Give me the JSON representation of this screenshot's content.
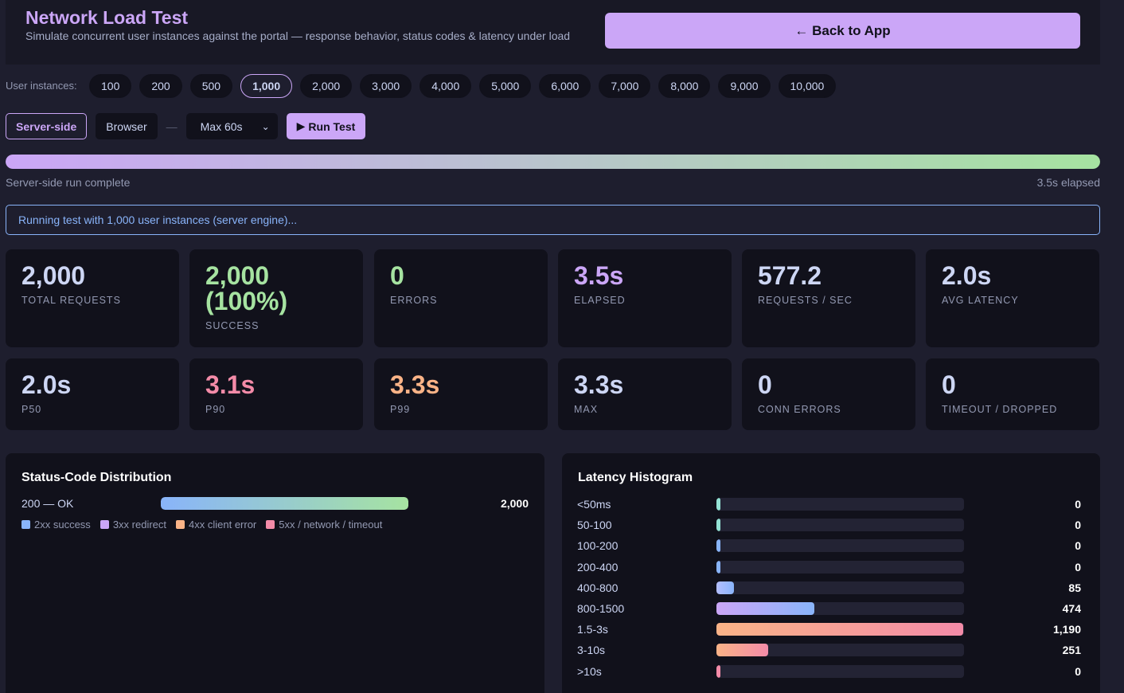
{
  "header": {
    "title": "Network Load Test",
    "subtitle": "Simulate concurrent user instances against the portal — response behavior, status codes & latency under load",
    "back_label": "← Back to App"
  },
  "instances": {
    "label": "User instances:",
    "options": [
      "100",
      "200",
      "500",
      "1,000",
      "2,000",
      "3,000",
      "4,000",
      "5,000",
      "6,000",
      "7,000",
      "8,000",
      "9,000",
      "10,000"
    ],
    "selected": "1,000"
  },
  "mode": {
    "server_label": "Server-side",
    "browser_label": "Browser",
    "separator": "—",
    "duration_value": "Max 60s",
    "run_label": "Run Test",
    "selected": "Server-side"
  },
  "progress": {
    "fraction": 1.0,
    "status": "Server-side run complete",
    "elapsed": "3.5s elapsed"
  },
  "info_message": "Running test with 1,000 user instances (server engine)...",
  "metrics_row1": [
    {
      "value": "2,000",
      "label": "TOTAL REQUESTS",
      "color": "#cdd6f4"
    },
    {
      "value": "2,000 (100%)",
      "label": "SUCCESS",
      "color": "#a6e3a1"
    },
    {
      "value": "0",
      "label": "ERRORS",
      "color": "#a6e3a1"
    },
    {
      "value": "3.5s",
      "label": "ELAPSED",
      "color": "#cba6f7"
    },
    {
      "value": "577.2",
      "label": "REQUESTS / SEC",
      "color": "#cdd6f4"
    },
    {
      "value": "2.0s",
      "label": "AVG LATENCY",
      "color": "#cdd6f4"
    }
  ],
  "metrics_row2": [
    {
      "value": "2.0s",
      "label": "P50",
      "color": "#cdd6f4"
    },
    {
      "value": "3.1s",
      "label": "P90",
      "color": "#f38ba8"
    },
    {
      "value": "3.3s",
      "label": "P99",
      "color": "#fab387"
    },
    {
      "value": "3.3s",
      "label": "MAX",
      "color": "#cdd6f4"
    },
    {
      "value": "0",
      "label": "CONN ERRORS",
      "color": "#cdd6f4"
    },
    {
      "value": "0",
      "label": "TIMEOUT / DROPPED",
      "color": "#cdd6f4"
    }
  ],
  "status_panel": {
    "title": "Status-Code Distribution",
    "rows": [
      {
        "label": "200 — OK",
        "count": "2,000",
        "fraction": 1.0
      }
    ],
    "legend": [
      {
        "label": "2xx success",
        "color": "#89b4fa"
      },
      {
        "label": "3xx redirect",
        "color": "#cba6f7"
      },
      {
        "label": "4xx client error",
        "color": "#fab387"
      },
      {
        "label": "5xx / network / timeout",
        "color": "#f38ba8"
      }
    ]
  },
  "latency_panel": {
    "title": "Latency Histogram",
    "buckets": [
      {
        "label": "<50ms",
        "count": "0",
        "value": 0,
        "color_start": "#94e2d5",
        "color_end": "#94e2d5"
      },
      {
        "label": "50-100",
        "count": "0",
        "value": 0,
        "color_start": "#94e2d5",
        "color_end": "#94e2d5"
      },
      {
        "label": "100-200",
        "count": "0",
        "value": 0,
        "color_start": "#89b4fa",
        "color_end": "#89b4fa"
      },
      {
        "label": "200-400",
        "count": "0",
        "value": 0,
        "color_start": "#89b4fa",
        "color_end": "#89b4fa"
      },
      {
        "label": "400-800",
        "count": "85",
        "value": 85,
        "color_start": "#b4befe",
        "color_end": "#89b4fa"
      },
      {
        "label": "800-1500",
        "count": "474",
        "value": 474,
        "color_start": "#cba6f7",
        "color_end": "#89b4fa"
      },
      {
        "label": "1.5-3s",
        "count": "1,190",
        "value": 1190,
        "color_start": "#fab387",
        "color_end": "#f38ba8"
      },
      {
        "label": "3-10s",
        "count": "251",
        "value": 251,
        "color_start": "#fab387",
        "color_end": "#f38ba8"
      },
      {
        "label": ">10s",
        "count": "0",
        "value": 0,
        "color_start": "#f38ba8",
        "color_end": "#f38ba8"
      }
    ]
  }
}
